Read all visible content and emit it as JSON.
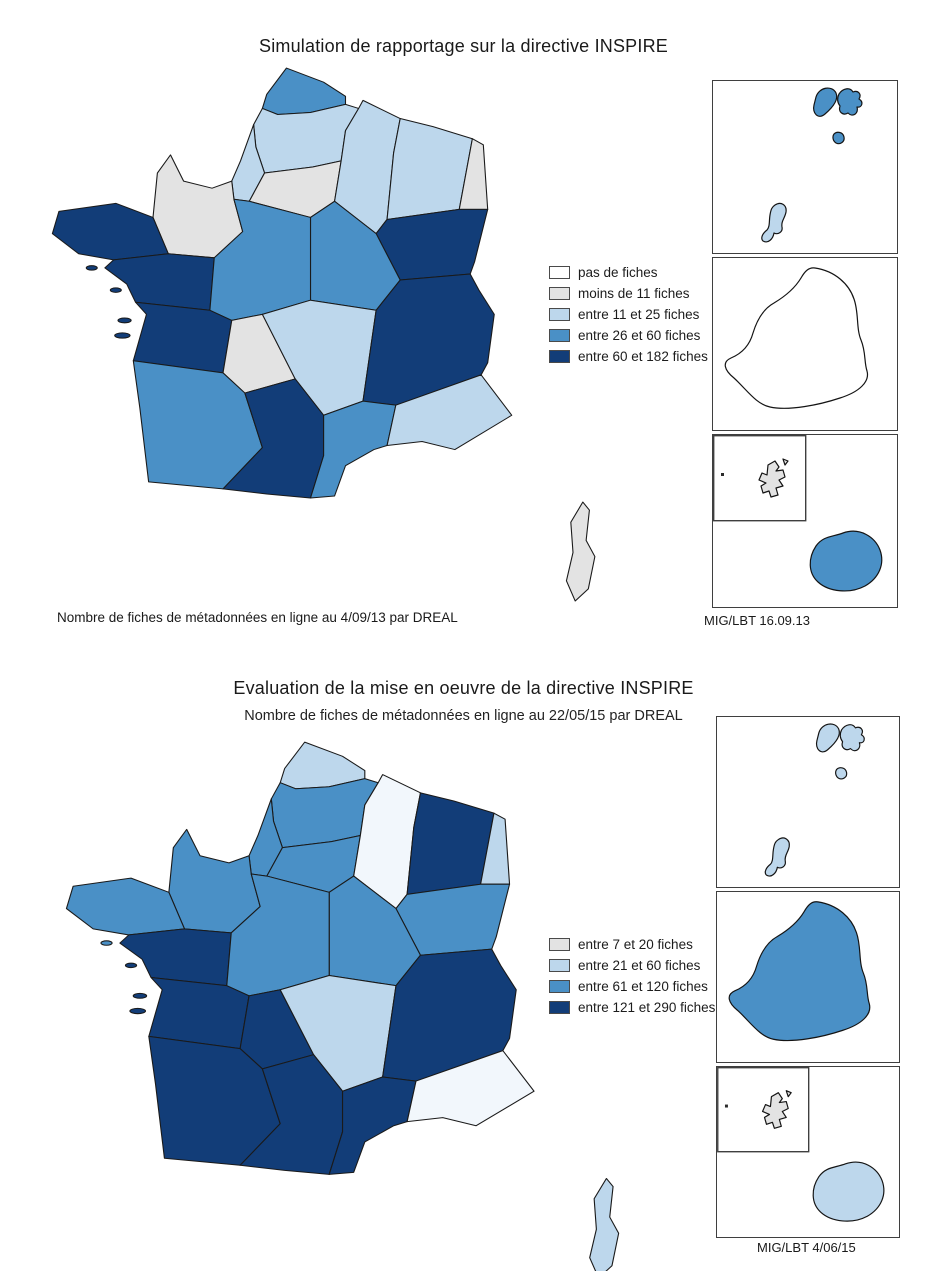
{
  "palette": {
    "white": "#ffffff",
    "gray": "#e3e3e3",
    "light": "#bdd7ec",
    "mid": "#4a90c6",
    "dark": "#123d78",
    "pale": "#f2f7fc",
    "map_border": "#1a1a1a"
  },
  "map1": {
    "title": "Simulation de rapportage sur la directive INSPIRE",
    "caption": "Nombre de fiches de métadonnées en ligne au 4/09/13 par DREAL",
    "credit": "MIG/LBT 16.09.13",
    "legend": [
      {
        "label": "pas de fiches",
        "color": "#ffffff"
      },
      {
        "label": "moins de 11 fiches",
        "color": "#e3e3e3"
      },
      {
        "label": "entre 11 et 25 fiches",
        "color": "#bdd7ec"
      },
      {
        "label": "entre 26 et 60 fiches",
        "color": "#4a90c6"
      },
      {
        "label": "entre 60 et 182 fiches",
        "color": "#123d78"
      }
    ],
    "regions": {
      "nord-pas-de-calais": "mid",
      "picardie": "light",
      "haute-normandie": "light",
      "basse-normandie": "gray",
      "ile-de-france": "gray",
      "champagne-ardenne": "light",
      "lorraine": "light",
      "alsace": "gray",
      "bretagne": "dark",
      "pays-de-la-loire": "dark",
      "centre": "mid",
      "bourgogne": "mid",
      "franche-comte": "dark",
      "poitou-charentes": "dark",
      "limousin": "gray",
      "auvergne": "light",
      "rhone-alpes": "dark",
      "aquitaine": "mid",
      "midi-pyrenees": "dark",
      "languedoc-roussillon": "mid",
      "paca": "light",
      "corse": "gray",
      "guadeloupe": "mid",
      "martinique": "light",
      "guyane": "white",
      "mayotte": "gray",
      "reunion": "mid"
    }
  },
  "map2": {
    "title": "Evaluation de la mise en oeuvre de la directive INSPIRE",
    "subtitle": "Nombre de fiches de métadonnées en ligne au 22/05/15 par DREAL",
    "credit": "MIG/LBT 4/06/15",
    "legend": [
      {
        "label": "entre 7 et 20 fiches",
        "color": "#e3e3e3"
      },
      {
        "label": "entre 21 et 60 fiches",
        "color": "#bdd7ec"
      },
      {
        "label": "entre 61 et 120 fiches",
        "color": "#4a90c6"
      },
      {
        "label": "entre 121 et 290 fiches",
        "color": "#123d78"
      }
    ],
    "regions": {
      "nord-pas-de-calais": "light",
      "picardie": "mid",
      "haute-normandie": "mid",
      "basse-normandie": "mid",
      "ile-de-france": "mid",
      "champagne-ardenne": "pale",
      "lorraine": "dark",
      "alsace": "light",
      "bretagne": "mid",
      "pays-de-la-loire": "dark",
      "centre": "mid",
      "bourgogne": "mid",
      "franche-comte": "mid",
      "poitou-charentes": "dark",
      "limousin": "dark",
      "auvergne": "light",
      "rhone-alpes": "dark",
      "aquitaine": "dark",
      "midi-pyrenees": "dark",
      "languedoc-roussillon": "dark",
      "paca": "pale",
      "corse": "light",
      "guadeloupe": "light",
      "martinique": "light",
      "guyane": "mid",
      "mayotte": "gray",
      "reunion": "light"
    }
  }
}
